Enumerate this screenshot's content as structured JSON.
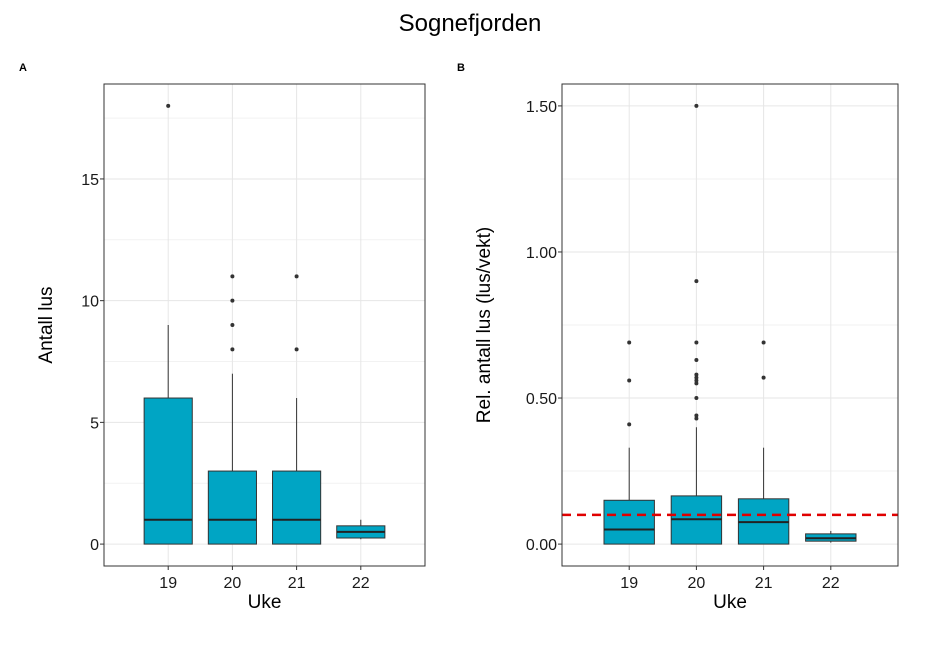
{
  "title": "Sognefjorden",
  "chart_data": [
    {
      "tag": "A",
      "type": "box",
      "xlabel": "Uke",
      "ylabel": "Antall lus",
      "categories": [
        "19",
        "20",
        "21",
        "22"
      ],
      "yticks": [
        0,
        5,
        10,
        15
      ],
      "ytick_labels": [
        "0",
        "5",
        "10",
        "15"
      ],
      "ylim": [
        -0.9,
        18.9
      ],
      "grid": true,
      "box_color": "#00A5C4",
      "boxes": [
        {
          "category": "19",
          "whisker_low": 0,
          "q1": 0,
          "median": 1,
          "q3": 6,
          "whisker_high": 9,
          "outliers": [
            18
          ]
        },
        {
          "category": "20",
          "whisker_low": 0,
          "q1": 0,
          "median": 1,
          "q3": 3,
          "whisker_high": 7,
          "outliers": [
            8,
            9,
            10,
            11
          ]
        },
        {
          "category": "21",
          "whisker_low": 0,
          "q1": 0,
          "median": 1,
          "q3": 3,
          "whisker_high": 6,
          "outliers": [
            8,
            11
          ]
        },
        {
          "category": "22",
          "whisker_low": 0.2,
          "q1": 0.25,
          "median": 0.5,
          "q3": 0.75,
          "whisker_high": 1,
          "outliers": []
        }
      ]
    },
    {
      "tag": "B",
      "type": "box",
      "xlabel": "Uke",
      "ylabel": "Rel. antall lus (lus/vekt)",
      "categories": [
        "19",
        "20",
        "21",
        "22"
      ],
      "yticks": [
        0,
        0.5,
        1.0,
        1.5
      ],
      "ytick_labels": [
        "0.00",
        "0.50",
        "1.00",
        "1.50"
      ],
      "ylim": [
        -0.075,
        1.575
      ],
      "grid": true,
      "box_color": "#00A5C4",
      "reference_line": {
        "y": 0.1,
        "color": "#E00000",
        "style": "dashed"
      },
      "boxes": [
        {
          "category": "19",
          "whisker_low": 0,
          "q1": 0,
          "median": 0.05,
          "q3": 0.15,
          "whisker_high": 0.33,
          "outliers": [
            0.41,
            0.56,
            0.69
          ]
        },
        {
          "category": "20",
          "whisker_low": 0,
          "q1": 0,
          "median": 0.085,
          "q3": 0.165,
          "whisker_high": 0.4,
          "outliers": [
            0.43,
            0.44,
            0.5,
            0.55,
            0.56,
            0.57,
            0.58,
            0.63,
            0.69,
            0.9,
            1.5
          ]
        },
        {
          "category": "21",
          "whisker_low": 0,
          "q1": 0,
          "median": 0.075,
          "q3": 0.155,
          "whisker_high": 0.33,
          "outliers": [
            0.57,
            0.69
          ]
        },
        {
          "category": "22",
          "whisker_low": 0.005,
          "q1": 0.01,
          "median": 0.02,
          "q3": 0.035,
          "whisker_high": 0.045,
          "outliers": []
        }
      ]
    }
  ]
}
